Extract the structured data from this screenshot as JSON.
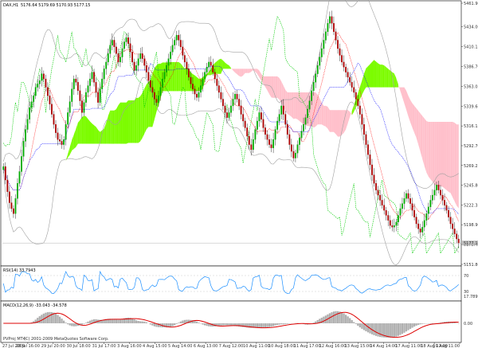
{
  "header": {
    "symbol": "DAX,H1",
    "ohlc": "5176.64 5179.69 5170.93 5177.15"
  },
  "copyright": "(C) 2001-2009 MetaQuotes Software Corp.",
  "platform": "PVProj MT4",
  "chart_data": [
    {
      "type": "candlestick",
      "panel": "price",
      "title": "DAX,H1 5176.64 5179.69 5170.93 5177.15",
      "price_ticks": [
        "5461.90",
        "5434.00",
        "5410.15",
        "5386.70",
        "5363.05",
        "5339.60",
        "5316.15",
        "5292.70",
        "5269.25",
        "5245.80",
        "5222.35",
        "5198.90",
        "5175.45",
        "5151.80"
      ],
      "ylim": [
        5151.8,
        5461.9
      ],
      "current_price": "5177.15",
      "overlays": [
        "ichimoku-cloud",
        "tenkan-sen",
        "kijun-sen",
        "chikou-span",
        "bollinger-bands"
      ],
      "colors": {
        "bull": "#00aa00",
        "bear": "#aa0000",
        "cloud_up": "#7cfc00",
        "cloud_down": "#ffc0cb",
        "tenkan": "#ff0000",
        "kijun": "#0000ff",
        "chikou": "#00cc00",
        "bands": "#a0a0a0"
      },
      "closes": [
        5268,
        5252,
        5238,
        5225,
        5218,
        5212,
        5230,
        5248,
        5262,
        5280,
        5298,
        5312,
        5324,
        5338,
        5345,
        5352,
        5362,
        5366,
        5370,
        5378,
        5372,
        5362,
        5352,
        5342,
        5330,
        5318,
        5308,
        5300,
        5298,
        5294,
        5300,
        5318,
        5332,
        5345,
        5360,
        5372,
        5368,
        5358,
        5346,
        5332,
        5344,
        5356,
        5364,
        5372,
        5380,
        5368,
        5356,
        5344,
        5360,
        5372,
        5384,
        5392,
        5402,
        5412,
        5418,
        5410,
        5402,
        5392,
        5398,
        5408,
        5416,
        5421,
        5414,
        5404,
        5392,
        5382,
        5388,
        5396,
        5402,
        5396,
        5388,
        5380,
        5370,
        5362,
        5356,
        5348,
        5344,
        5352,
        5362,
        5372,
        5380,
        5388,
        5396,
        5404,
        5412,
        5418,
        5424,
        5418,
        5410,
        5400,
        5392,
        5384,
        5374,
        5366,
        5360,
        5354,
        5350,
        5356,
        5364,
        5372,
        5380,
        5386,
        5392,
        5388,
        5380,
        5372,
        5364,
        5356,
        5348,
        5340,
        5332,
        5326,
        5332,
        5340,
        5348,
        5354,
        5348,
        5340,
        5330,
        5322,
        5314,
        5304,
        5294,
        5288,
        5300,
        5312,
        5322,
        5332,
        5324,
        5314,
        5306,
        5300,
        5294,
        5290,
        5300,
        5312,
        5322,
        5330,
        5340,
        5330,
        5318,
        5306,
        5294,
        5286,
        5278,
        5284,
        5294,
        5302,
        5310,
        5318,
        5326,
        5336,
        5346,
        5358,
        5368,
        5378,
        5388,
        5398,
        5408,
        5418,
        5428,
        5438,
        5446,
        5438,
        5428,
        5418,
        5408,
        5400,
        5392,
        5386,
        5380,
        5374,
        5368,
        5362,
        5356,
        5348,
        5340,
        5330,
        5318,
        5306,
        5294,
        5282,
        5270,
        5258,
        5248,
        5240,
        5234,
        5228,
        5222,
        5216,
        5210,
        5204,
        5198,
        5196,
        5198,
        5202,
        5210,
        5218,
        5224,
        5230,
        5236,
        5230,
        5224,
        5216,
        5208,
        5200,
        5194,
        5190,
        5196,
        5204,
        5212,
        5220,
        5228,
        5234,
        5240,
        5246,
        5240,
        5234,
        5228,
        5222,
        5216,
        5208,
        5200,
        5194,
        5188,
        5182,
        5177
      ]
    },
    {
      "type": "line",
      "panel": "rsi",
      "title": "RSI(14) 33.7943",
      "ticks": [
        "70",
        "30",
        "17.7899"
      ],
      "ylim": [
        10,
        90
      ],
      "color": "#1e90ff"
    },
    {
      "type": "bar",
      "panel": "macd",
      "title": "MACD(12,26,9) -33.043 -34.578",
      "ticks": [
        "0.00"
      ],
      "colors": {
        "histogram": "#b0b0b0",
        "signal": "#dd0000"
      }
    }
  ],
  "time_axis": [
    "27 Jul 2009",
    "28 Jul 16:00",
    "29 Jul 20:00",
    "30 Jul 18:00",
    "31 Jul 17:00",
    "3 Aug 16:00",
    "4 Aug 15:00",
    "5 Aug 14:00",
    "6 Aug 13:00",
    "7 Aug 12:00",
    "10 Aug 11:00",
    "10 Aug 18:00",
    "11 Aug 17:00",
    "12 Aug 16:00",
    "13 Aug 15:00",
    "14 Aug 14:00",
    "17 Aug 11:00",
    "18 Aug 12:00",
    "19 Aug 11:00"
  ]
}
